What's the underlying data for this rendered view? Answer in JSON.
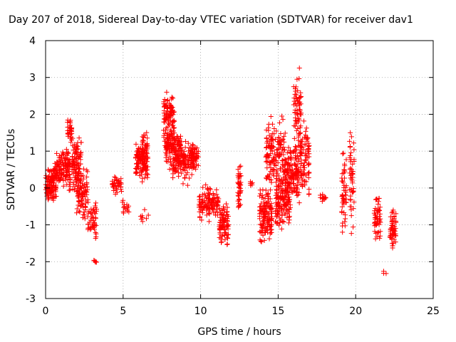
{
  "chart_data": {
    "type": "scatter",
    "title": "Day 207 of 2018, Sidereal Day-to-day VTEC variation (SDTVAR) for receiver dav1",
    "xlabel": "GPS time / hours",
    "ylabel": "SDTVAR / TECUs",
    "xlim": [
      0,
      25
    ],
    "ylim": [
      -3,
      4
    ],
    "x_ticks": [
      0,
      5,
      10,
      15,
      20,
      25
    ],
    "y_ticks": [
      -3,
      -2,
      -1,
      0,
      1,
      2,
      3,
      4
    ],
    "grid": true,
    "marker": "+",
    "color": "#ff0000",
    "series": [
      {
        "name": "SDTVAR",
        "clusters": [
          {
            "x": [
              0.0,
              0.7
            ],
            "y": [
              -0.6,
              0.8
            ],
            "n": 120
          },
          {
            "x": [
              0.6,
              1.6
            ],
            "y": [
              -0.2,
              1.2
            ],
            "n": 130
          },
          {
            "x": [
              1.4,
              1.7
            ],
            "y": [
              1.0,
              2.1
            ],
            "n": 30
          },
          {
            "x": [
              1.7,
              2.3
            ],
            "y": [
              -0.2,
              1.6
            ],
            "n": 90
          },
          {
            "x": [
              2.0,
              2.7
            ],
            "y": [
              -1.0,
              0.8
            ],
            "n": 90
          },
          {
            "x": [
              2.7,
              3.3
            ],
            "y": [
              -1.6,
              -0.2
            ],
            "n": 50
          },
          {
            "x": [
              3.1,
              3.3
            ],
            "y": [
              -2.1,
              -1.9
            ],
            "n": 5
          },
          {
            "x": [
              4.3,
              4.9
            ],
            "y": [
              -0.2,
              0.4
            ],
            "n": 40
          },
          {
            "x": [
              4.9,
              5.4
            ],
            "y": [
              -0.8,
              -0.2
            ],
            "n": 15
          },
          {
            "x": [
              5.8,
              6.4
            ],
            "y": [
              0.2,
              1.4
            ],
            "n": 80
          },
          {
            "x": [
              6.2,
              6.6
            ],
            "y": [
              -0.3,
              1.9
            ],
            "n": 70
          },
          {
            "x": [
              6.0,
              6.7
            ],
            "y": [
              -1.2,
              -0.5
            ],
            "n": 8
          },
          {
            "x": [
              7.6,
              8.3
            ],
            "y": [
              1.0,
              2.8
            ],
            "n": 100
          },
          {
            "x": [
              7.7,
              8.8
            ],
            "y": [
              0.4,
              1.8
            ],
            "n": 120
          },
          {
            "x": [
              8.2,
              9.6
            ],
            "y": [
              0.0,
              1.4
            ],
            "n": 140
          },
          {
            "x": [
              9.4,
              9.9
            ],
            "y": [
              0.4,
              1.4
            ],
            "n": 40
          },
          {
            "x": [
              9.9,
              10.6
            ],
            "y": [
              -1.0,
              0.2
            ],
            "n": 70
          },
          {
            "x": [
              10.6,
              11.2
            ],
            "y": [
              -0.8,
              0.0
            ],
            "n": 50
          },
          {
            "x": [
              11.2,
              11.8
            ],
            "y": [
              -1.8,
              -0.2
            ],
            "n": 90
          },
          {
            "x": [
              12.4,
              12.6
            ],
            "y": [
              -0.9,
              0.9
            ],
            "n": 40
          },
          {
            "x": [
              13.2,
              13.4
            ],
            "y": [
              0.0,
              0.2
            ],
            "n": 6
          },
          {
            "x": [
              13.8,
              14.6
            ],
            "y": [
              -1.7,
              0.2
            ],
            "n": 140
          },
          {
            "x": [
              14.2,
              15.4
            ],
            "y": [
              -0.4,
              2.2
            ],
            "n": 150
          },
          {
            "x": [
              14.8,
              15.8
            ],
            "y": [
              -1.3,
              0.6
            ],
            "n": 140
          },
          {
            "x": [
              15.4,
              16.3
            ],
            "y": [
              -0.6,
              1.6
            ],
            "n": 140
          },
          {
            "x": [
              16.0,
              16.5
            ],
            "y": [
              0.8,
              3.4
            ],
            "n": 60
          },
          {
            "x": [
              16.3,
              17.0
            ],
            "y": [
              -0.8,
              2.2
            ],
            "n": 100
          },
          {
            "x": [
              17.7,
              18.1
            ],
            "y": [
              -0.4,
              -0.1
            ],
            "n": 15
          },
          {
            "x": [
              19.1,
              19.4
            ],
            "y": [
              -1.8,
              1.3
            ],
            "n": 50
          },
          {
            "x": [
              19.6,
              19.9
            ],
            "y": [
              -1.4,
              1.8
            ],
            "n": 50
          },
          {
            "x": [
              21.2,
              21.6
            ],
            "y": [
              -1.7,
              0.2
            ],
            "n": 50
          },
          {
            "x": [
              21.8,
              22.0
            ],
            "y": [
              -2.4,
              -2.2
            ],
            "n": 3
          },
          {
            "x": [
              22.2,
              22.6
            ],
            "y": [
              -1.8,
              -0.4
            ],
            "n": 55
          }
        ]
      }
    ]
  }
}
